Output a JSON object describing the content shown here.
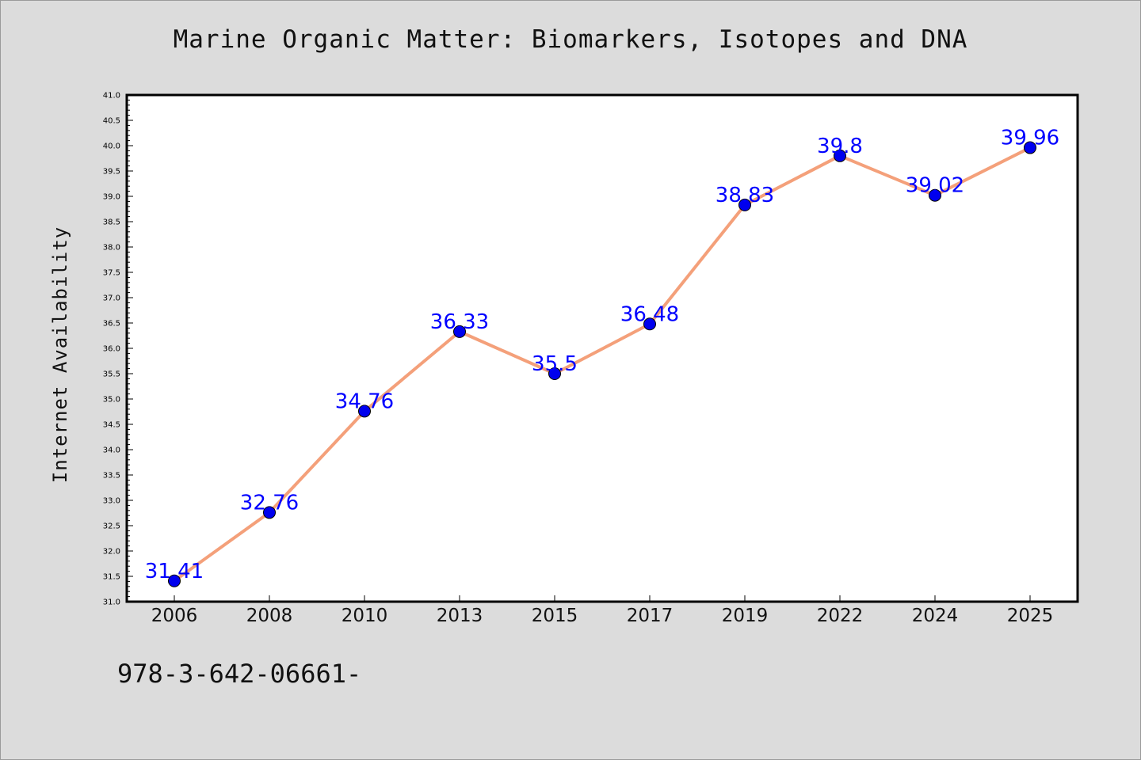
{
  "chart_data": {
    "type": "line",
    "title": "Marine Organic Matter: Biomarkers, Isotopes and DNA",
    "xlabel": "",
    "ylabel": "Internet Availability",
    "categories": [
      "2006",
      "2008",
      "2010",
      "2013",
      "2015",
      "2017",
      "2019",
      "2022",
      "2024",
      "2025"
    ],
    "series": [
      {
        "values": [
          31.41,
          32.76,
          34.76,
          36.33,
          35.5,
          36.48,
          38.83,
          39.8,
          39.02,
          39.96
        ],
        "labels": [
          "31.41",
          "32.76",
          "34.76",
          "36.33",
          "35.5",
          "36.48",
          "38.83",
          "39.8",
          "39.02",
          "39.96"
        ],
        "line_color": "#f4a07a",
        "marker_color": "#0000ee",
        "label_color": "#0000ff"
      }
    ],
    "ylim": [
      31.0,
      41.0
    ],
    "yticks": [
      "31.0",
      "31.5",
      "32.0",
      "32.5",
      "33.0",
      "33.5",
      "34.0",
      "34.5",
      "35.0",
      "35.5",
      "36.0",
      "36.5",
      "37.0",
      "37.5",
      "38.0",
      "38.5",
      "39.0",
      "39.5",
      "40.0",
      "40.5",
      "41.0"
    ],
    "grid": false,
    "legend": "none"
  },
  "footer": {
    "code": "978-3-642-06661-"
  },
  "colors": {
    "background": "#dcdcdc",
    "plot_area": "#ffffff"
  }
}
